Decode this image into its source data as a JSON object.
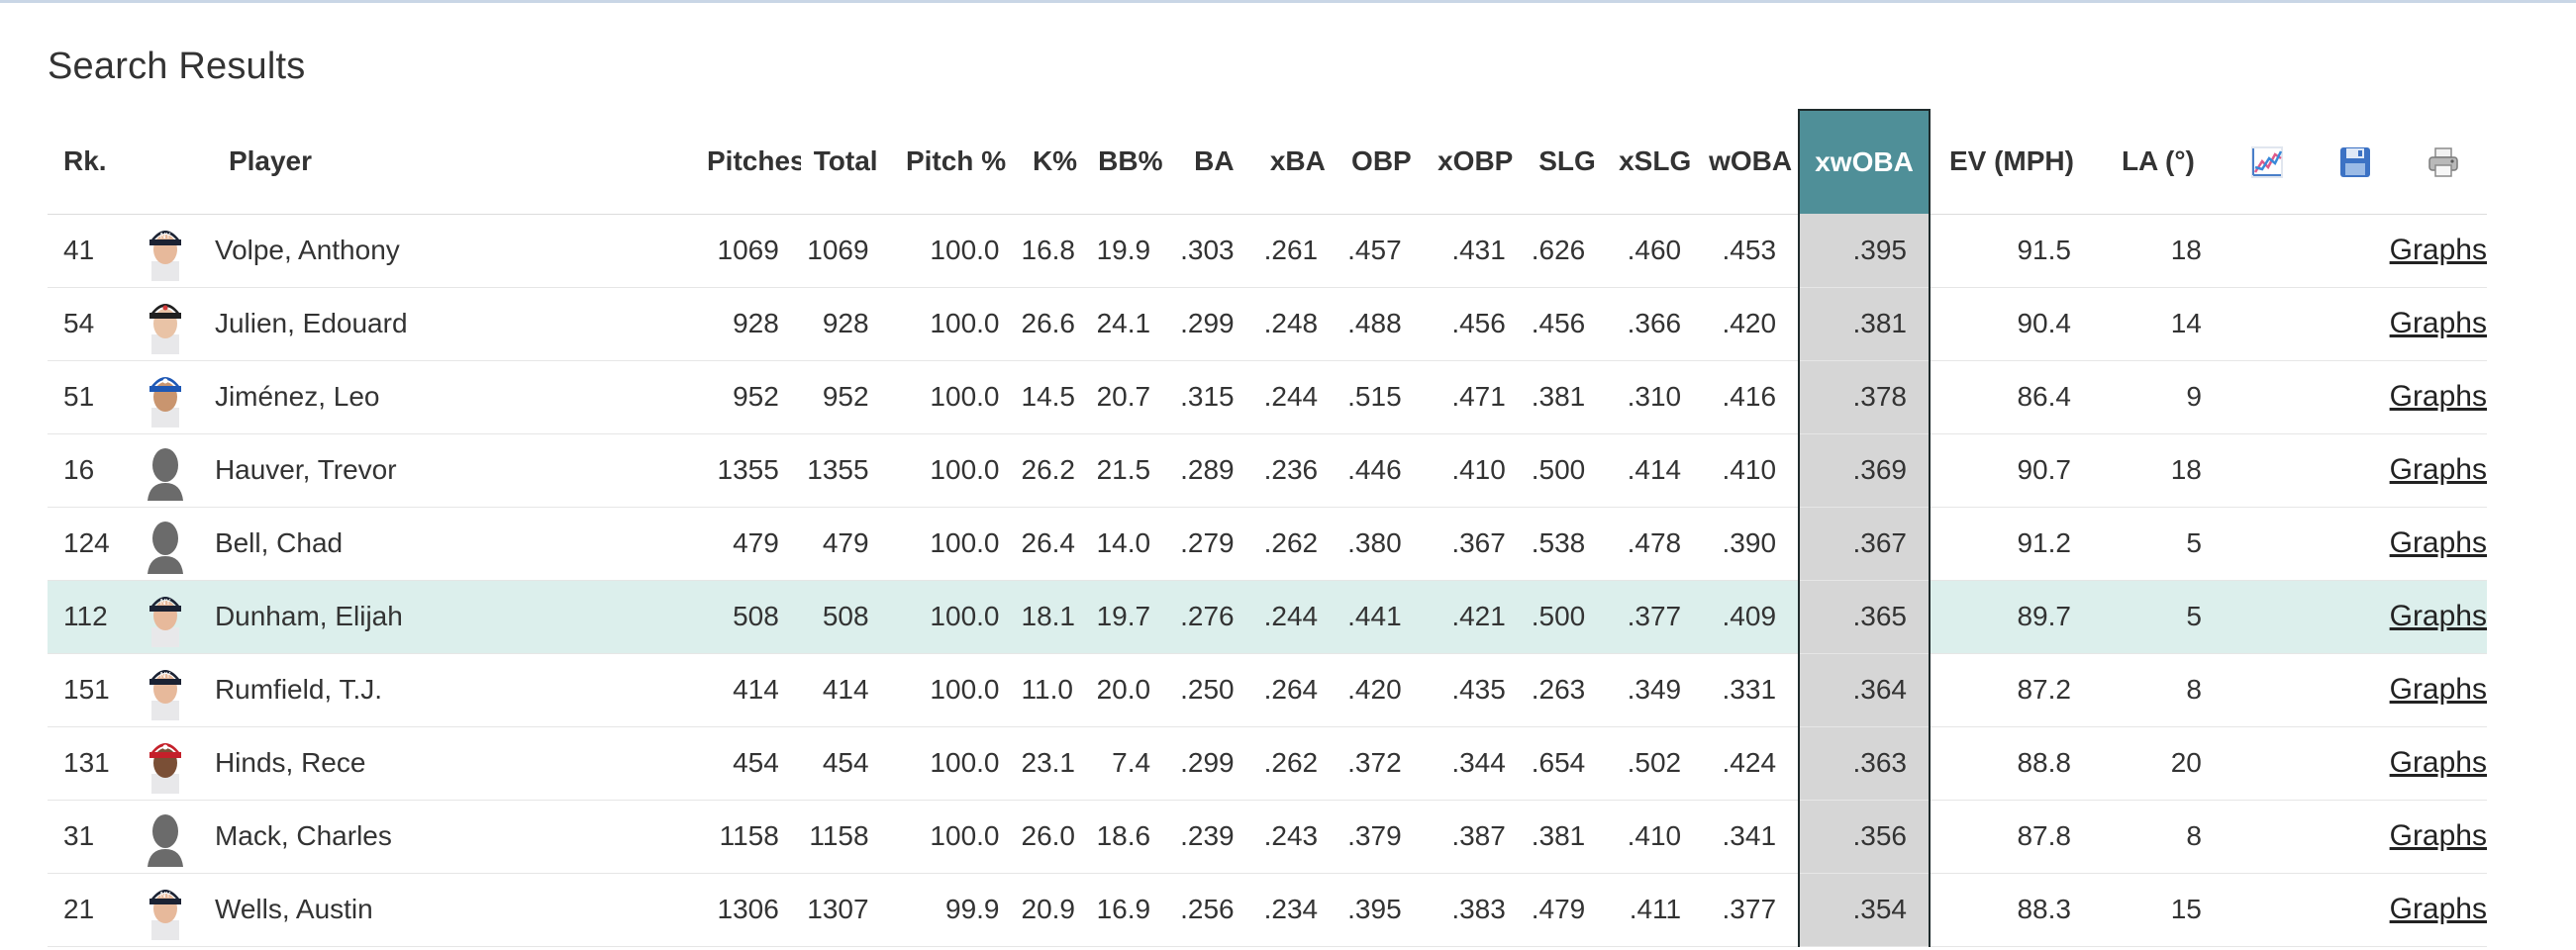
{
  "page_title": "Search Results",
  "colors": {
    "accent": "#4f8f98",
    "highlight_row": "#dcefec",
    "xwoba_cell": "#d6d6d6"
  },
  "columns": {
    "rk": "Rk.",
    "player": "Player",
    "pitches": "Pitches",
    "total": "Total",
    "pitch_pct": "Pitch %",
    "k_pct": "K%",
    "bb_pct": "BB%",
    "ba": "BA",
    "xba": "xBA",
    "obp": "OBP",
    "xobp": "xOBP",
    "slg": "SLG",
    "xslg": "xSLG",
    "woba": "wOBA",
    "xwoba": "xwOBA",
    "ev": "EV (MPH)",
    "la": "LA (°)"
  },
  "header_icons": [
    "chart-icon",
    "save-icon",
    "print-icon"
  ],
  "rows": [
    {
      "rk": "41",
      "player": "Volpe, Anthony",
      "avatar": "ny-cap",
      "pitches": "1069",
      "total": "1069",
      "pitch_pct": "100.0",
      "k_pct": "16.8",
      "bb_pct": "19.9",
      "ba": ".303",
      "xba": ".261",
      "obp": ".457",
      "xobp": ".431",
      "slg": ".626",
      "xslg": ".460",
      "woba": ".453",
      "xwoba": ".395",
      "ev": "91.5",
      "la": "18",
      "link": "Graphs"
    },
    {
      "rk": "54",
      "player": "Julien, Edouard",
      "avatar": "black-cap",
      "pitches": "928",
      "total": "928",
      "pitch_pct": "100.0",
      "k_pct": "26.6",
      "bb_pct": "24.1",
      "ba": ".299",
      "xba": ".248",
      "obp": ".488",
      "xobp": ".456",
      "slg": ".456",
      "xslg": ".366",
      "woba": ".420",
      "xwoba": ".381",
      "ev": "90.4",
      "la": "14",
      "link": "Graphs"
    },
    {
      "rk": "51",
      "player": "Jiménez, Leo",
      "avatar": "blue-cap",
      "pitches": "952",
      "total": "952",
      "pitch_pct": "100.0",
      "k_pct": "14.5",
      "bb_pct": "20.7",
      "ba": ".315",
      "xba": ".244",
      "obp": ".515",
      "xobp": ".471",
      "slg": ".381",
      "xslg": ".310",
      "woba": ".416",
      "xwoba": ".378",
      "ev": "86.4",
      "la": "9",
      "link": "Graphs"
    },
    {
      "rk": "16",
      "player": "Hauver, Trevor",
      "avatar": "silhouette",
      "pitches": "1355",
      "total": "1355",
      "pitch_pct": "100.0",
      "k_pct": "26.2",
      "bb_pct": "21.5",
      "ba": ".289",
      "xba": ".236",
      "obp": ".446",
      "xobp": ".410",
      "slg": ".500",
      "xslg": ".414",
      "woba": ".410",
      "xwoba": ".369",
      "ev": "90.7",
      "la": "18",
      "link": "Graphs"
    },
    {
      "rk": "124",
      "player": "Bell, Chad",
      "avatar": "silhouette",
      "pitches": "479",
      "total": "479",
      "pitch_pct": "100.0",
      "k_pct": "26.4",
      "bb_pct": "14.0",
      "ba": ".279",
      "xba": ".262",
      "obp": ".380",
      "xobp": ".367",
      "slg": ".538",
      "xslg": ".478",
      "woba": ".390",
      "xwoba": ".367",
      "ev": "91.2",
      "la": "5",
      "link": "Graphs"
    },
    {
      "rk": "112",
      "player": "Dunham, Elijah",
      "avatar": "ny-cap",
      "pitches": "508",
      "total": "508",
      "pitch_pct": "100.0",
      "k_pct": "18.1",
      "bb_pct": "19.7",
      "ba": ".276",
      "xba": ".244",
      "obp": ".441",
      "xobp": ".421",
      "slg": ".500",
      "xslg": ".377",
      "woba": ".409",
      "xwoba": ".365",
      "ev": "89.7",
      "la": "5",
      "link": "Graphs"
    },
    {
      "rk": "151",
      "player": "Rumfield, T.J.",
      "avatar": "ny-cap",
      "pitches": "414",
      "total": "414",
      "pitch_pct": "100.0",
      "k_pct": "11.0",
      "bb_pct": "20.0",
      "ba": ".250",
      "xba": ".264",
      "obp": ".420",
      "xobp": ".435",
      "slg": ".263",
      "xslg": ".349",
      "woba": ".331",
      "xwoba": ".364",
      "ev": "87.2",
      "la": "8",
      "link": "Graphs"
    },
    {
      "rk": "131",
      "player": "Hinds, Rece",
      "avatar": "red-cap",
      "pitches": "454",
      "total": "454",
      "pitch_pct": "100.0",
      "k_pct": "23.1",
      "bb_pct": "7.4",
      "ba": ".299",
      "xba": ".262",
      "obp": ".372",
      "xobp": ".344",
      "slg": ".654",
      "xslg": ".502",
      "woba": ".424",
      "xwoba": ".363",
      "ev": "88.8",
      "la": "20",
      "link": "Graphs"
    },
    {
      "rk": "31",
      "player": "Mack, Charles",
      "avatar": "silhouette",
      "pitches": "1158",
      "total": "1158",
      "pitch_pct": "100.0",
      "k_pct": "26.0",
      "bb_pct": "18.6",
      "ba": ".239",
      "xba": ".243",
      "obp": ".379",
      "xobp": ".387",
      "slg": ".381",
      "xslg": ".410",
      "woba": ".341",
      "xwoba": ".356",
      "ev": "87.8",
      "la": "8",
      "link": "Graphs"
    },
    {
      "rk": "21",
      "player": "Wells, Austin",
      "avatar": "ny-cap",
      "pitches": "1306",
      "total": "1307",
      "pitch_pct": "99.9",
      "k_pct": "20.9",
      "bb_pct": "16.9",
      "ba": ".256",
      "xba": ".234",
      "obp": ".395",
      "xobp": ".383",
      "slg": ".479",
      "xslg": ".411",
      "woba": ".377",
      "xwoba": ".354",
      "ev": "88.3",
      "la": "15",
      "link": "Graphs"
    }
  ]
}
